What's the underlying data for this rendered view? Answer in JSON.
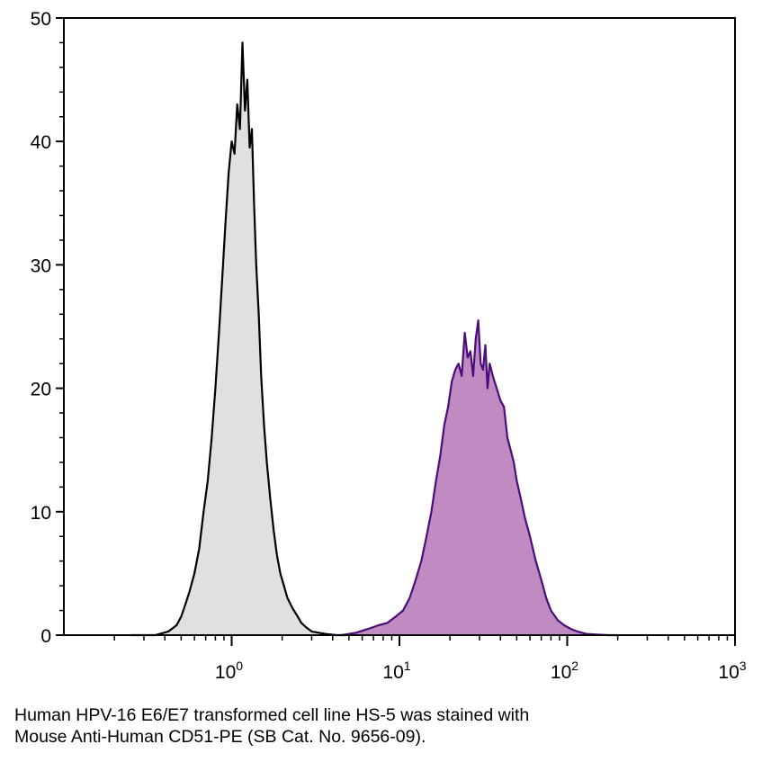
{
  "caption": {
    "line1": "Human HPV-16 E6/E7 transformed cell line HS-5 was stained with",
    "line2": "Mouse Anti-Human CD51-PE (SB Cat. No. 9656-09)."
  },
  "chart_data": {
    "type": "area",
    "title": "",
    "xlabel": "",
    "ylabel": "",
    "x_scale": "log",
    "xlim": [
      0.1,
      1000
    ],
    "ylim": [
      0,
      50
    ],
    "y_ticks": [
      0,
      10,
      20,
      30,
      40,
      50
    ],
    "x_ticks": [
      {
        "value": 1,
        "base": "10",
        "exp": "0"
      },
      {
        "value": 10,
        "base": "10",
        "exp": "1"
      },
      {
        "value": 100,
        "base": "10",
        "exp": "2"
      },
      {
        "value": 1000,
        "base": "10",
        "exp": "3"
      }
    ],
    "grid": false,
    "legend": "none",
    "series": [
      {
        "fill": "#e0e0e0",
        "stroke": "#000000",
        "x": [
          0.25,
          0.35,
          0.42,
          0.47,
          0.5,
          0.53,
          0.56,
          0.6,
          0.64,
          0.68,
          0.72,
          0.76,
          0.8,
          0.84,
          0.88,
          0.92,
          0.96,
          1.0,
          1.04,
          1.08,
          1.12,
          1.16,
          1.2,
          1.24,
          1.28,
          1.32,
          1.36,
          1.4,
          1.45,
          1.5,
          1.56,
          1.62,
          1.7,
          1.78,
          1.86,
          1.95,
          2.05,
          2.15,
          2.3,
          2.45,
          2.6,
          2.8,
          3.0,
          3.3,
          3.6,
          4.2,
          4.8
        ],
        "y": [
          0,
          0,
          0.3,
          0.8,
          1.5,
          2.5,
          3.5,
          5.0,
          7.0,
          10.0,
          12.5,
          16.0,
          20.0,
          24.5,
          29.0,
          33.5,
          37.5,
          40.0,
          39.0,
          43.0,
          41.0,
          48.0,
          42.5,
          45.0,
          39.5,
          41.0,
          35.0,
          30.0,
          26.0,
          21.0,
          17.0,
          14.0,
          11.0,
          8.5,
          6.5,
          5.0,
          4.0,
          3.0,
          2.2,
          1.6,
          1.0,
          0.6,
          0.3,
          0.2,
          0.1,
          0,
          0
        ]
      },
      {
        "fill": "#c08ac2",
        "stroke": "#4a0d79",
        "x": [
          4.5,
          5.5,
          6.5,
          7.5,
          8.5,
          9.5,
          10.5,
          11.5,
          12.5,
          13.5,
          14.5,
          15.5,
          16.5,
          17.5,
          18.5,
          19.5,
          20.5,
          21.5,
          22.5,
          23.5,
          24.5,
          25.5,
          26.5,
          27.5,
          28.5,
          29.5,
          30.5,
          31.5,
          32.5,
          33.5,
          34.5,
          36,
          38,
          40,
          42,
          44,
          46,
          48,
          50,
          53,
          56,
          60,
          65,
          70,
          75,
          80,
          88,
          96,
          105,
          115,
          130,
          150,
          175,
          200
        ],
        "y": [
          0,
          0.2,
          0.5,
          0.8,
          1.0,
          1.5,
          2.0,
          3.0,
          4.5,
          6.0,
          8.0,
          10.0,
          12.5,
          14.5,
          17.0,
          18.5,
          20.5,
          21.5,
          22.0,
          21.0,
          24.5,
          22.5,
          23.0,
          21.0,
          24.0,
          25.5,
          22.0,
          21.5,
          23.5,
          20.0,
          22.0,
          21.0,
          20.0,
          19.0,
          18.5,
          16.0,
          15.0,
          14.0,
          12.5,
          11.0,
          9.5,
          8.0,
          6.0,
          4.5,
          3.0,
          2.0,
          1.2,
          0.8,
          0.5,
          0.3,
          0.1,
          0.05,
          0,
          0
        ]
      }
    ]
  }
}
